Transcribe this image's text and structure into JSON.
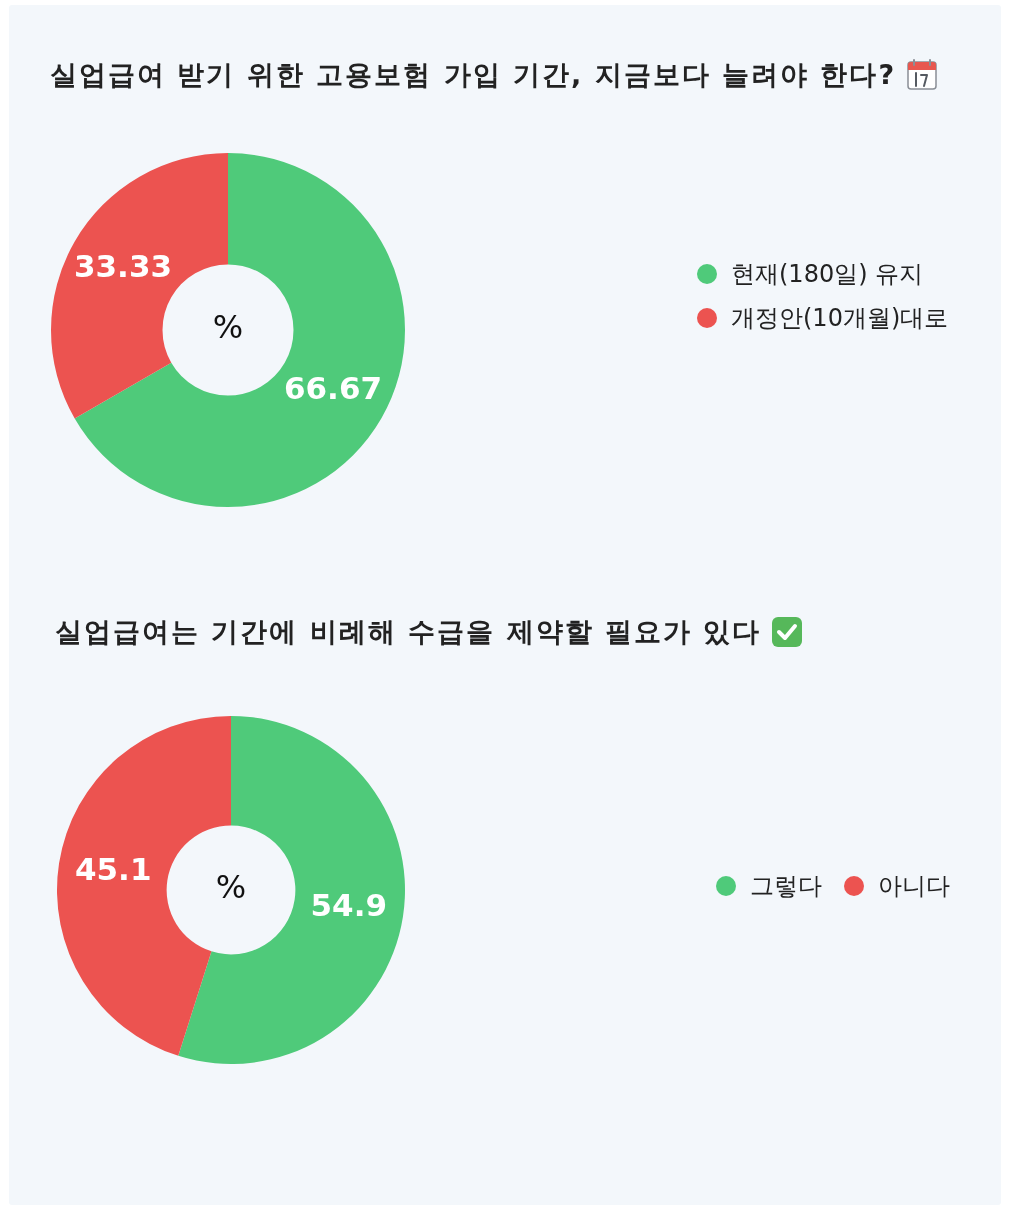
{
  "chart_data": [
    {
      "type": "donut",
      "title": "실업급여 받기 위한 고용보험 가입 기간, 지금보다 늘려야 한다?",
      "categories": [
        "현재(180일) 유지",
        "개정안(10개월)대로"
      ],
      "values": [
        66.67,
        33.33
      ],
      "colors": [
        "#4fca7a",
        "#ec5350"
      ],
      "data_labels": true,
      "legend": "right",
      "annotations": [
        "%"
      ]
    },
    {
      "type": "donut",
      "title": "실업급여는 기간에 비례해 수급을 제약할 필요가 있다",
      "categories": [
        "그렇다",
        "아니다"
      ],
      "values": [
        54.9,
        45.1
      ],
      "colors": [
        "#4fca7a",
        "#ec5350"
      ],
      "data_labels": true,
      "legend": "right",
      "annotations": [
        "%"
      ]
    }
  ]
}
